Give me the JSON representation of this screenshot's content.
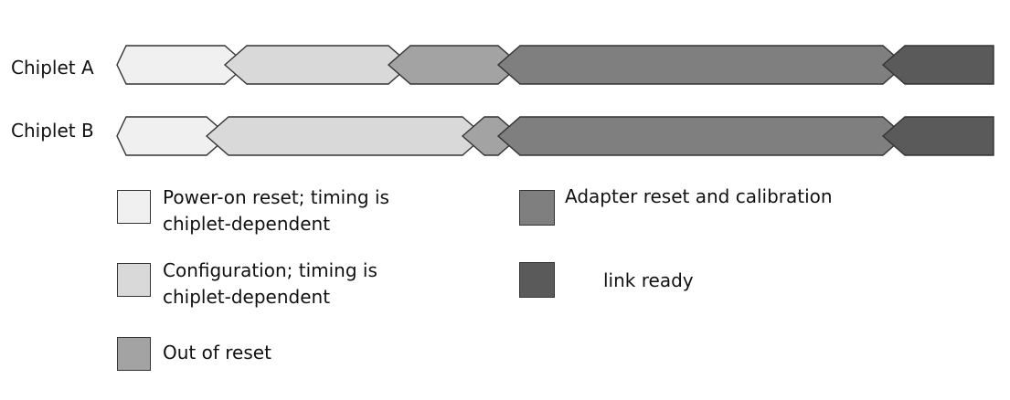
{
  "colors": {
    "power_on_reset": "#f0f0f0",
    "configuration": "#d9d9d9",
    "out_of_reset": "#a3a3a3",
    "adapter_reset": "#7f7f7f",
    "link_ready": "#5a5a5a",
    "stroke": "#333333"
  },
  "rows": [
    {
      "label": "Chiplet A",
      "segments": [
        {
          "phase": "power_on_reset"
        },
        {
          "phase": "configuration"
        },
        {
          "phase": "out_of_reset"
        },
        {
          "phase": "adapter_reset"
        },
        {
          "phase": "link_ready"
        }
      ]
    },
    {
      "label": "Chiplet B",
      "segments": [
        {
          "phase": "power_on_reset"
        },
        {
          "phase": "configuration"
        },
        {
          "phase": "out_of_reset"
        },
        {
          "phase": "adapter_reset"
        },
        {
          "phase": "link_ready"
        }
      ]
    }
  ],
  "legend": [
    {
      "phase": "power_on_reset",
      "lines": [
        "Power-on reset; timing is",
        "chiplet-dependent"
      ]
    },
    {
      "phase": "configuration",
      "lines": [
        "Configuration; timing is",
        "chiplet-dependent"
      ]
    },
    {
      "phase": "out_of_reset",
      "lines": [
        "Out of reset"
      ]
    },
    {
      "phase": "adapter_reset",
      "lines": [
        "Adapter reset and calibration"
      ]
    },
    {
      "phase": "link_ready",
      "lines": [
        "link ready"
      ]
    }
  ]
}
